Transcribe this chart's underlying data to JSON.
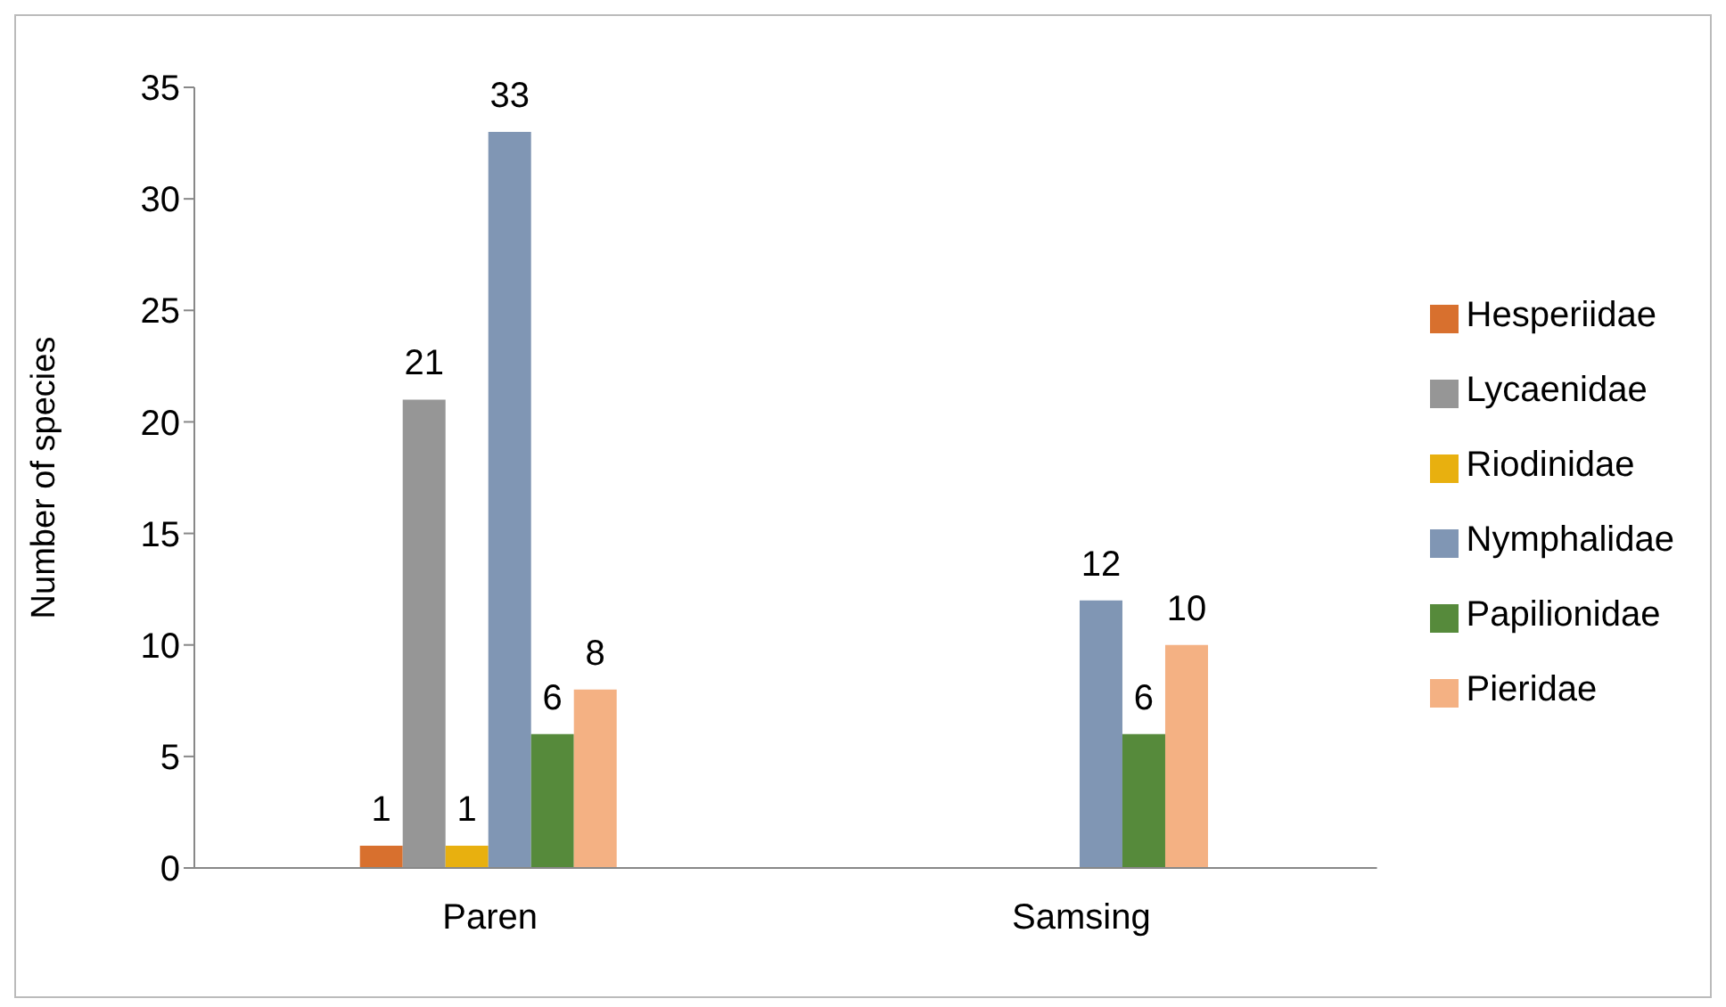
{
  "chart_data": {
    "type": "bar",
    "ylabel": "Number of species",
    "categories": [
      "Paren",
      "Samsing"
    ],
    "series": [
      {
        "name": "Hesperiidae",
        "color": "#d8702e",
        "values": [
          1,
          null
        ]
      },
      {
        "name": "Lycaenidae",
        "color": "#969696",
        "values": [
          21,
          null
        ]
      },
      {
        "name": "Riodinidae",
        "color": "#e8b00f",
        "values": [
          1,
          null
        ]
      },
      {
        "name": "Nymphalidae",
        "color": "#8096b4",
        "values": [
          33,
          12
        ]
      },
      {
        "name": "Papilionidae",
        "color": "#568a3b",
        "values": [
          6,
          6
        ]
      },
      {
        "name": "Pieridae",
        "color": "#f4b183",
        "values": [
          8,
          10
        ]
      }
    ],
    "ylim": [
      0,
      35
    ],
    "yticks": [
      0,
      5,
      10,
      15,
      20,
      25,
      30,
      35
    ],
    "grid": false,
    "legend": "right",
    "data_labels": true
  }
}
